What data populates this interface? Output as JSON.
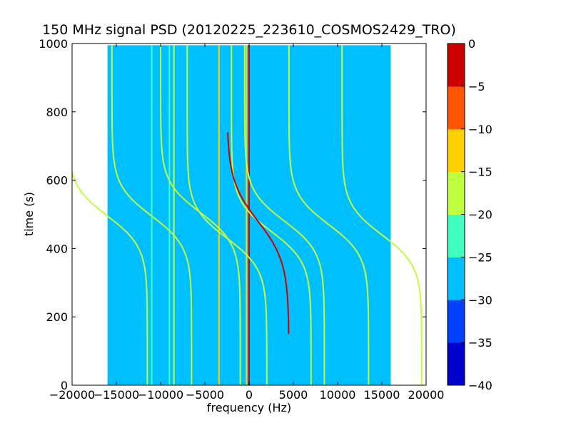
{
  "chart_data": {
    "type": "heatmap",
    "title": "150 MHz signal PSD (20120225_223610_COSMOS2429_TRO)",
    "xlabel": "frequency (Hz)",
    "ylabel": "time (s)",
    "xlim": [
      -20000,
      20000
    ],
    "ylim": [
      0,
      1000
    ],
    "x_ticks": [
      -20000,
      -15000,
      -10000,
      -5000,
      0,
      5000,
      10000,
      15000,
      20000
    ],
    "x_tick_labels": [
      "−20000",
      "−15000",
      "−10000",
      "−5000",
      "0",
      "5000",
      "10000",
      "15000",
      "20000"
    ],
    "y_ticks": [
      0,
      200,
      400,
      600,
      800,
      1000
    ],
    "y_tick_labels": [
      "0",
      "200",
      "400",
      "600",
      "800",
      "1000"
    ],
    "data_extent": {
      "x": [
        -16000,
        16000
      ],
      "y": [
        0,
        995
      ]
    },
    "background_level": -28,
    "colorbar": {
      "levels": [
        0,
        -5,
        -10,
        -15,
        -20,
        -25,
        -30,
        -35,
        -40
      ],
      "tick_labels": [
        "0",
        "−5",
        "−10",
        "−15",
        "−20",
        "−25",
        "−30",
        "−35",
        "−40"
      ],
      "colors": [
        "#0000cd",
        "#0040ff",
        "#00bfff",
        "#40ffbf",
        "#bfff40",
        "#ffcf00",
        "#ff5500",
        "#cd0000"
      ]
    },
    "constant_lines": [
      {
        "freq": -11000,
        "level": -21
      },
      {
        "freq": -9000,
        "level": -21
      },
      {
        "freq": -8500,
        "level": -18
      },
      {
        "freq": -3400,
        "level": -15
      },
      {
        "freq": -300,
        "level": -15
      },
      {
        "freq": 0,
        "level": -5
      }
    ],
    "doppler_tracks": [
      {
        "center_freq": -16000,
        "center_time": 495,
        "half_span": 4500,
        "width": 90,
        "t_start": 0,
        "t_end": 995,
        "level": -20
      },
      {
        "center_freq": -11000,
        "center_time": 495,
        "half_span": 4500,
        "width": 90,
        "t_start": 0,
        "t_end": 995,
        "level": -20
      },
      {
        "center_freq": -5500,
        "center_time": 505,
        "half_span": 4500,
        "width": 90,
        "t_start": 0,
        "t_end": 995,
        "level": -18
      },
      {
        "center_freq": -2500,
        "center_time": 430,
        "half_span": 4500,
        "width": 90,
        "t_start": 0,
        "t_end": 995,
        "level": -18
      },
      {
        "center_freq": 2500,
        "center_time": 450,
        "half_span": 4500,
        "width": 90,
        "t_start": 0,
        "t_end": 995,
        "level": -18
      },
      {
        "center_freq": 4000,
        "center_time": 480,
        "half_span": 4500,
        "width": 90,
        "t_start": 0,
        "t_end": 995,
        "level": -18
      },
      {
        "center_freq": 9000,
        "center_time": 470,
        "half_span": 4500,
        "width": 90,
        "t_start": 0,
        "t_end": 995,
        "level": -18
      },
      {
        "center_freq": 15000,
        "center_time": 440,
        "half_span": 4500,
        "width": 90,
        "t_start": 0,
        "t_end": 995,
        "level": -20
      },
      {
        "center_freq": 1000,
        "center_time": 480,
        "half_span": 3500,
        "width": 120,
        "t_start": 150,
        "t_end": 740,
        "level": -5
      }
    ]
  }
}
